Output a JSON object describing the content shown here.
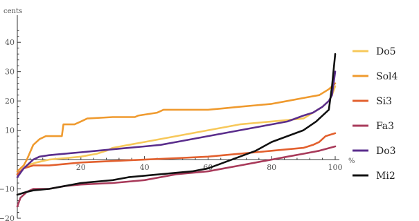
{
  "chart_data": {
    "type": "line",
    "xlabel": "%",
    "ylabel": "cents",
    "xlim": [
      0,
      100
    ],
    "ylim": [
      -20,
      45
    ],
    "xticks": [
      20,
      40,
      60,
      80,
      100
    ],
    "yticks": [
      -20,
      -10,
      10,
      20,
      30,
      40
    ],
    "grid": false,
    "legend_position": "right",
    "series": [
      {
        "name": "Do5",
        "color": "#f7c85a",
        "points": [
          [
            0,
            -5
          ],
          [
            3,
            -2
          ],
          [
            6,
            -1
          ],
          [
            10,
            0
          ],
          [
            15,
            0.5
          ],
          [
            20,
            1
          ],
          [
            25,
            2
          ],
          [
            28,
            3
          ],
          [
            30,
            4
          ],
          [
            35,
            5
          ],
          [
            40,
            6
          ],
          [
            45,
            7
          ],
          [
            50,
            8
          ],
          [
            55,
            9
          ],
          [
            60,
            10
          ],
          [
            65,
            11
          ],
          [
            70,
            12
          ],
          [
            75,
            12.5
          ],
          [
            80,
            13
          ],
          [
            85,
            13.5
          ],
          [
            90,
            14
          ],
          [
            93,
            16
          ],
          [
            96,
            18
          ],
          [
            98,
            20
          ],
          [
            99,
            22
          ],
          [
            100,
            25
          ]
        ]
      },
      {
        "name": "Sol4",
        "color": "#ef9a2e",
        "points": [
          [
            0,
            -4
          ],
          [
            2,
            -2
          ],
          [
            3,
            0
          ],
          [
            5,
            5
          ],
          [
            7,
            7
          ],
          [
            9,
            8
          ],
          [
            14,
            8
          ],
          [
            14.5,
            12
          ],
          [
            18,
            12
          ],
          [
            20,
            13
          ],
          [
            22,
            14
          ],
          [
            30,
            14.5
          ],
          [
            37,
            14.5
          ],
          [
            38,
            15
          ],
          [
            44,
            16
          ],
          [
            46,
            17
          ],
          [
            60,
            17
          ],
          [
            65,
            17.5
          ],
          [
            70,
            18
          ],
          [
            75,
            18.5
          ],
          [
            80,
            19
          ],
          [
            85,
            20
          ],
          [
            90,
            21
          ],
          [
            95,
            22
          ],
          [
            98,
            24
          ],
          [
            100,
            26
          ]
        ]
      },
      {
        "name": "Si3",
        "color": "#e2602e",
        "points": [
          [
            0,
            -5
          ],
          [
            2,
            -3
          ],
          [
            5,
            -2
          ],
          [
            10,
            -2
          ],
          [
            20,
            -1
          ],
          [
            30,
            -0.5
          ],
          [
            40,
            0
          ],
          [
            50,
            0.5
          ],
          [
            60,
            1
          ],
          [
            70,
            2
          ],
          [
            75,
            2.5
          ],
          [
            80,
            3
          ],
          [
            85,
            3.5
          ],
          [
            90,
            4
          ],
          [
            93,
            5
          ],
          [
            95,
            6
          ],
          [
            97,
            8
          ],
          [
            100,
            9
          ]
        ]
      },
      {
        "name": "Fa3",
        "color": "#a83a5a",
        "points": [
          [
            0,
            -16
          ],
          [
            1,
            -13
          ],
          [
            3,
            -11
          ],
          [
            5,
            -10
          ],
          [
            10,
            -10
          ],
          [
            15,
            -9
          ],
          [
            20,
            -8.5
          ],
          [
            30,
            -8
          ],
          [
            40,
            -7
          ],
          [
            45,
            -6
          ],
          [
            50,
            -5
          ],
          [
            55,
            -4.5
          ],
          [
            60,
            -4
          ],
          [
            65,
            -3
          ],
          [
            70,
            -2
          ],
          [
            75,
            -1
          ],
          [
            80,
            0
          ],
          [
            85,
            1
          ],
          [
            90,
            2
          ],
          [
            95,
            3
          ],
          [
            100,
            4.5
          ]
        ]
      },
      {
        "name": "Do3",
        "color": "#5a2d8c",
        "points": [
          [
            0,
            -6
          ],
          [
            2,
            -3
          ],
          [
            4,
            -1
          ],
          [
            5,
            0
          ],
          [
            7,
            1
          ],
          [
            10,
            1.5
          ],
          [
            15,
            2
          ],
          [
            20,
            2.5
          ],
          [
            25,
            3
          ],
          [
            30,
            3.5
          ],
          [
            35,
            4
          ],
          [
            40,
            4.5
          ],
          [
            45,
            5
          ],
          [
            50,
            6
          ],
          [
            55,
            7
          ],
          [
            60,
            8
          ],
          [
            65,
            9
          ],
          [
            70,
            10
          ],
          [
            75,
            11
          ],
          [
            80,
            12
          ],
          [
            85,
            13
          ],
          [
            90,
            15
          ],
          [
            93,
            16
          ],
          [
            96,
            18
          ],
          [
            98,
            20
          ],
          [
            99,
            22
          ],
          [
            100,
            30
          ]
        ]
      },
      {
        "name": "Mi2",
        "color": "#111111",
        "points": [
          [
            0,
            -12
          ],
          [
            3,
            -11
          ],
          [
            5,
            -10.5
          ],
          [
            10,
            -10
          ],
          [
            15,
            -9
          ],
          [
            20,
            -8
          ],
          [
            25,
            -7.5
          ],
          [
            30,
            -7
          ],
          [
            35,
            -6
          ],
          [
            40,
            -5.5
          ],
          [
            45,
            -5
          ],
          [
            50,
            -4.5
          ],
          [
            55,
            -4
          ],
          [
            60,
            -3
          ],
          [
            65,
            -1
          ],
          [
            70,
            1
          ],
          [
            75,
            3
          ],
          [
            80,
            6
          ],
          [
            85,
            8
          ],
          [
            90,
            10
          ],
          [
            94,
            13
          ],
          [
            96,
            15
          ],
          [
            98,
            17
          ],
          [
            99,
            25
          ],
          [
            100,
            36
          ]
        ]
      }
    ]
  }
}
